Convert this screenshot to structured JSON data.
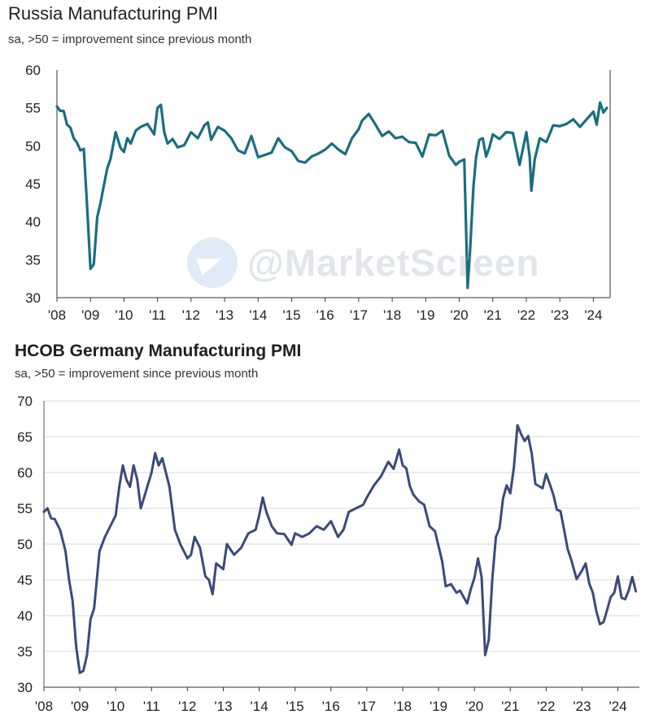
{
  "watermark": "@MarketScreen",
  "chart_data": [
    {
      "type": "line",
      "title": "Russia Manufacturing PMI",
      "subtitle": "sa, >50 = improvement since previous month",
      "xlabel": "",
      "ylabel": "",
      "ylim": [
        30,
        60
      ],
      "yticks": [
        30,
        35,
        40,
        45,
        50,
        55,
        60
      ],
      "xlim": [
        2008,
        2024.5
      ],
      "xticks": [
        {
          "x": 2008,
          "label": "'08"
        },
        {
          "x": 2009,
          "label": "'09"
        },
        {
          "x": 2010,
          "label": "'10"
        },
        {
          "x": 2011,
          "label": "'11"
        },
        {
          "x": 2012,
          "label": "'12"
        },
        {
          "x": 2013,
          "label": "'13"
        },
        {
          "x": 2014,
          "label": "'14"
        },
        {
          "x": 2015,
          "label": "'15"
        },
        {
          "x": 2016,
          "label": "'16"
        },
        {
          "x": 2017,
          "label": "'17"
        },
        {
          "x": 2018,
          "label": "'18"
        },
        {
          "x": 2019,
          "label": "'19"
        },
        {
          "x": 2020,
          "label": "'20"
        },
        {
          "x": 2021,
          "label": "'21"
        },
        {
          "x": 2022,
          "label": "'22"
        },
        {
          "x": 2023,
          "label": "'23"
        },
        {
          "x": 2024,
          "label": "'24"
        }
      ],
      "color": "#1a6e80",
      "series": [
        {
          "name": "Russia Manufacturing PMI",
          "x": [
            2008.0,
            2008.1,
            2008.2,
            2008.3,
            2008.4,
            2008.5,
            2008.6,
            2008.7,
            2008.8,
            2008.9,
            2009.0,
            2009.1,
            2009.2,
            2009.3,
            2009.4,
            2009.5,
            2009.6,
            2009.75,
            2009.9,
            2010.0,
            2010.1,
            2010.2,
            2010.35,
            2010.5,
            2010.7,
            2010.9,
            2011.0,
            2011.1,
            2011.2,
            2011.3,
            2011.45,
            2011.6,
            2011.8,
            2012.0,
            2012.2,
            2012.4,
            2012.5,
            2012.6,
            2012.8,
            2013.0,
            2013.2,
            2013.4,
            2013.6,
            2013.8,
            2014.0,
            2014.2,
            2014.4,
            2014.6,
            2014.8,
            2015.0,
            2015.2,
            2015.4,
            2015.6,
            2015.8,
            2016.0,
            2016.2,
            2016.4,
            2016.6,
            2016.8,
            2017.0,
            2017.1,
            2017.3,
            2017.5,
            2017.7,
            2017.9,
            2018.1,
            2018.3,
            2018.5,
            2018.7,
            2018.9,
            2019.1,
            2019.3,
            2019.5,
            2019.7,
            2019.9,
            2020.0,
            2020.15,
            2020.25,
            2020.32,
            2020.42,
            2020.5,
            2020.6,
            2020.7,
            2020.8,
            2020.9,
            2021.0,
            2021.2,
            2021.4,
            2021.6,
            2021.8,
            2022.0,
            2022.1,
            2022.15,
            2022.25,
            2022.4,
            2022.6,
            2022.8,
            2023.0,
            2023.2,
            2023.4,
            2023.6,
            2023.8,
            2024.0,
            2024.1,
            2024.2,
            2024.3,
            2024.4
          ],
          "values": [
            55.2,
            54.6,
            54.6,
            52.8,
            52.4,
            51.0,
            50.4,
            49.4,
            49.6,
            42.0,
            33.8,
            34.4,
            40.6,
            42.5,
            44.8,
            47.0,
            48.3,
            51.8,
            49.7,
            49.2,
            51.0,
            50.3,
            52.0,
            52.5,
            52.9,
            51.5,
            55.0,
            55.4,
            51.8,
            50.3,
            50.9,
            49.8,
            50.1,
            51.8,
            51.0,
            52.7,
            53.1,
            50.8,
            52.5,
            52.0,
            51.0,
            49.4,
            49.0,
            51.3,
            48.5,
            48.8,
            49.1,
            51.0,
            49.8,
            49.3,
            48.0,
            47.8,
            48.6,
            49.0,
            49.5,
            50.3,
            49.5,
            48.9,
            51.0,
            52.2,
            53.3,
            54.2,
            52.8,
            51.3,
            51.9,
            51.0,
            51.2,
            50.5,
            50.4,
            48.6,
            51.5,
            51.4,
            52.0,
            48.7,
            47.5,
            47.9,
            48.2,
            31.3,
            36.0,
            44.5,
            48.5,
            50.8,
            51.0,
            48.6,
            49.8,
            51.5,
            50.9,
            51.8,
            51.7,
            47.5,
            51.8,
            48.6,
            44.1,
            48.2,
            51.0,
            50.5,
            52.7,
            52.6,
            52.9,
            53.5,
            52.5,
            53.5,
            54.5,
            52.8,
            55.7,
            54.4,
            55.0
          ]
        }
      ]
    },
    {
      "type": "line",
      "title": "HCOB Germany Manufacturing PMI",
      "subtitle": "sa, >50 = improvement since previous month",
      "xlabel": "",
      "ylabel": "",
      "ylim": [
        30,
        70
      ],
      "yticks": [
        30,
        35,
        40,
        45,
        50,
        55,
        60,
        65,
        70
      ],
      "xlim": [
        2008,
        2024.6
      ],
      "xticks": [
        {
          "x": 2008,
          "label": "'08"
        },
        {
          "x": 2009,
          "label": "'09"
        },
        {
          "x": 2010,
          "label": "'10"
        },
        {
          "x": 2011,
          "label": "'11"
        },
        {
          "x": 2012,
          "label": "'12"
        },
        {
          "x": 2013,
          "label": "'13"
        },
        {
          "x": 2014,
          "label": "'14"
        },
        {
          "x": 2015,
          "label": "'15"
        },
        {
          "x": 2016,
          "label": "'16"
        },
        {
          "x": 2017,
          "label": "'17"
        },
        {
          "x": 2018,
          "label": "'18"
        },
        {
          "x": 2019,
          "label": "'19"
        },
        {
          "x": 2020,
          "label": "'20"
        },
        {
          "x": 2021,
          "label": "'21"
        },
        {
          "x": 2022,
          "label": "'22"
        },
        {
          "x": 2023,
          "label": "'23"
        },
        {
          "x": 2024,
          "label": "'24"
        }
      ],
      "color": "#3b4a7a",
      "series": [
        {
          "name": "HCOB Germany Manufacturing PMI",
          "x": [
            2008.0,
            2008.1,
            2008.2,
            2008.3,
            2008.45,
            2008.6,
            2008.7,
            2008.8,
            2008.9,
            2009.0,
            2009.1,
            2009.2,
            2009.3,
            2009.4,
            2009.55,
            2009.7,
            2009.85,
            2010.0,
            2010.1,
            2010.2,
            2010.3,
            2010.4,
            2010.5,
            2010.6,
            2010.7,
            2010.85,
            2011.0,
            2011.1,
            2011.2,
            2011.3,
            2011.5,
            2011.65,
            2011.8,
            2012.0,
            2012.1,
            2012.2,
            2012.35,
            2012.5,
            2012.6,
            2012.7,
            2012.8,
            2013.0,
            2013.1,
            2013.3,
            2013.5,
            2013.7,
            2013.9,
            2014.0,
            2014.1,
            2014.2,
            2014.35,
            2014.5,
            2014.7,
            2014.9,
            2015.0,
            2015.2,
            2015.4,
            2015.6,
            2015.8,
            2016.0,
            2016.2,
            2016.35,
            2016.5,
            2016.7,
            2016.9,
            2017.0,
            2017.2,
            2017.4,
            2017.6,
            2017.75,
            2017.9,
            2018.0,
            2018.1,
            2018.2,
            2018.3,
            2018.45,
            2018.6,
            2018.75,
            2018.9,
            2019.0,
            2019.1,
            2019.2,
            2019.35,
            2019.5,
            2019.6,
            2019.8,
            2019.9,
            2020.0,
            2020.1,
            2020.2,
            2020.3,
            2020.4,
            2020.5,
            2020.6,
            2020.7,
            2020.8,
            2020.9,
            2021.0,
            2021.1,
            2021.2,
            2021.3,
            2021.4,
            2021.5,
            2021.6,
            2021.7,
            2021.9,
            2022.0,
            2022.1,
            2022.2,
            2022.3,
            2022.4,
            2022.5,
            2022.6,
            2022.7,
            2022.85,
            2023.0,
            2023.1,
            2023.2,
            2023.3,
            2023.4,
            2023.5,
            2023.6,
            2023.7,
            2023.8,
            2023.9,
            2024.0,
            2024.1,
            2024.2,
            2024.3,
            2024.4,
            2024.5
          ],
          "values": [
            54.5,
            55.0,
            53.6,
            53.5,
            52.0,
            49.0,
            45.0,
            42.0,
            35.6,
            32.0,
            32.3,
            34.5,
            39.5,
            41.0,
            49.0,
            51.0,
            52.5,
            54.0,
            58.0,
            61.0,
            59.0,
            58.0,
            61.0,
            59.0,
            55.0,
            57.5,
            60.0,
            62.7,
            61.0,
            62.0,
            58.0,
            52.0,
            50.0,
            48.0,
            48.5,
            51.0,
            49.5,
            45.5,
            45.0,
            43.0,
            47.3,
            46.5,
            50.0,
            48.5,
            49.5,
            51.5,
            52.0,
            54.0,
            56.5,
            54.5,
            52.5,
            51.5,
            51.4,
            49.9,
            51.5,
            51.0,
            51.5,
            52.5,
            52.0,
            53.2,
            51.0,
            52.0,
            54.5,
            55.0,
            55.5,
            56.5,
            58.2,
            59.5,
            61.5,
            60.5,
            63.2,
            61.0,
            60.6,
            58.1,
            56.9,
            56.0,
            55.5,
            52.5,
            51.8,
            49.7,
            47.6,
            44.1,
            44.4,
            43.2,
            43.5,
            41.7,
            43.7,
            45.3,
            48.0,
            45.4,
            34.5,
            36.6,
            45.2,
            51.0,
            52.2,
            56.4,
            58.2,
            57.1,
            60.7,
            66.6,
            65.4,
            64.4,
            65.1,
            62.6,
            58.4,
            57.8,
            59.8,
            58.4,
            56.9,
            54.8,
            54.6,
            52.0,
            49.3,
            47.8,
            45.1,
            46.3,
            47.3,
            44.5,
            43.2,
            40.6,
            38.8,
            39.1,
            40.8,
            42.6,
            43.2,
            45.5,
            42.5,
            42.3,
            43.5,
            45.4,
            43.4
          ]
        }
      ]
    }
  ]
}
